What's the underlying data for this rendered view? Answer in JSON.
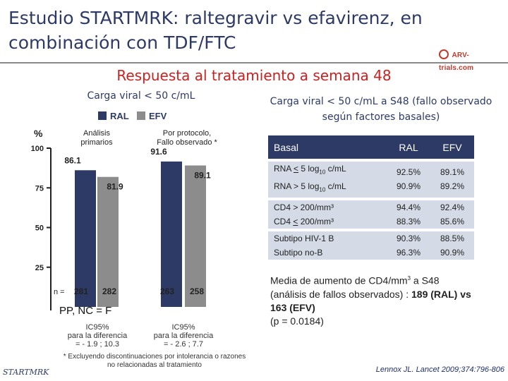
{
  "slide": {
    "title": "Estudio STARTMRK: raltegravir vs efavirenz, en combinación con TDF/FTC",
    "subtitle": "Respuesta al tratamiento a semana 48",
    "logo_text": "ARV-trials.com",
    "footer_brand": "STARTMRK",
    "reference": "Lennox JL. Lancet 2009;374:796-806",
    "colors": {
      "ral": "#2e3a66",
      "efv": "#8c8c8c",
      "title": "#2e3a66",
      "subtitle": "#cc1f1f",
      "table_header": "#2e3a66",
      "table_row": "#d4dbe6"
    }
  },
  "chart_data": {
    "type": "bar",
    "title": "Carga viral < 50 c/mL",
    "ylabel": "%",
    "ylim": [
      0,
      100
    ],
    "yticks": [
      100,
      75,
      50,
      25
    ],
    "categories": [
      "Análisis primarios",
      "Por protocolo, Fallo observado *"
    ],
    "series": [
      {
        "name": "RAL",
        "values": [
          86.1,
          91.6
        ],
        "n": [
          281,
          263
        ]
      },
      {
        "name": "EFV",
        "values": [
          81.9,
          89.1
        ],
        "n": [
          282,
          258
        ]
      }
    ],
    "value_labels": [
      "86.1",
      "81.9",
      "91.6",
      "89.1"
    ],
    "n_prefix": "n =",
    "n_labels": [
      "281",
      "282",
      "263",
      "258"
    ],
    "analysis_label": "PP, NC = F",
    "ci": [
      {
        "label": "IC95%",
        "sub": "para la diferencia",
        "range": "= - 1.9 ; 10.3"
      },
      {
        "label": "IC95%",
        "sub": "para la diferencia",
        "range": "= - 2.6 ; 7.7"
      }
    ],
    "footnote": "* Excluyendo discontinuaciones por intolerancia o razones no relacionadas al tratamiento"
  },
  "table": {
    "title": "Carga viral < 50 c/mL a S48 (fallo observado según factores basales)",
    "headers": [
      "Basal",
      "RAL",
      "EFV"
    ],
    "rows": [
      {
        "l1a": "RNA ",
        "l1u": "<",
        "l1b": " 5 log",
        "l1s": "10",
        "l1c": " c/mL",
        "l2": "RNA > 5 log",
        "l2s": "10",
        "l2c": " c/mL",
        "r1": "92.5%",
        "r2": "90.9%",
        "e1": "89.1%",
        "e2": "89.2%"
      },
      {
        "l1a": "CD4 > 200/mm³",
        "l2a": "CD4 ",
        "l2u": "<",
        "l2b": " 200/mm³",
        "r1": "94.4%",
        "r2": "88.3%",
        "e1": "92.4%",
        "e2": "85.6%"
      },
      {
        "l1a": "Subtipo HIV-1 B",
        "l2a": "Subtipo no-B",
        "r1": "90.3%",
        "r2": "96.3%",
        "e1": "88.5%",
        "e2": "90.9%"
      }
    ]
  },
  "note": {
    "text1": "Media de aumento de CD4/mm",
    "sup": "3",
    "text2": " a S48 (análisis de fallos observados) : ",
    "bold": "189 (RAL) vs 163 (EFV)",
    "p": "(p = 0.0184)"
  }
}
